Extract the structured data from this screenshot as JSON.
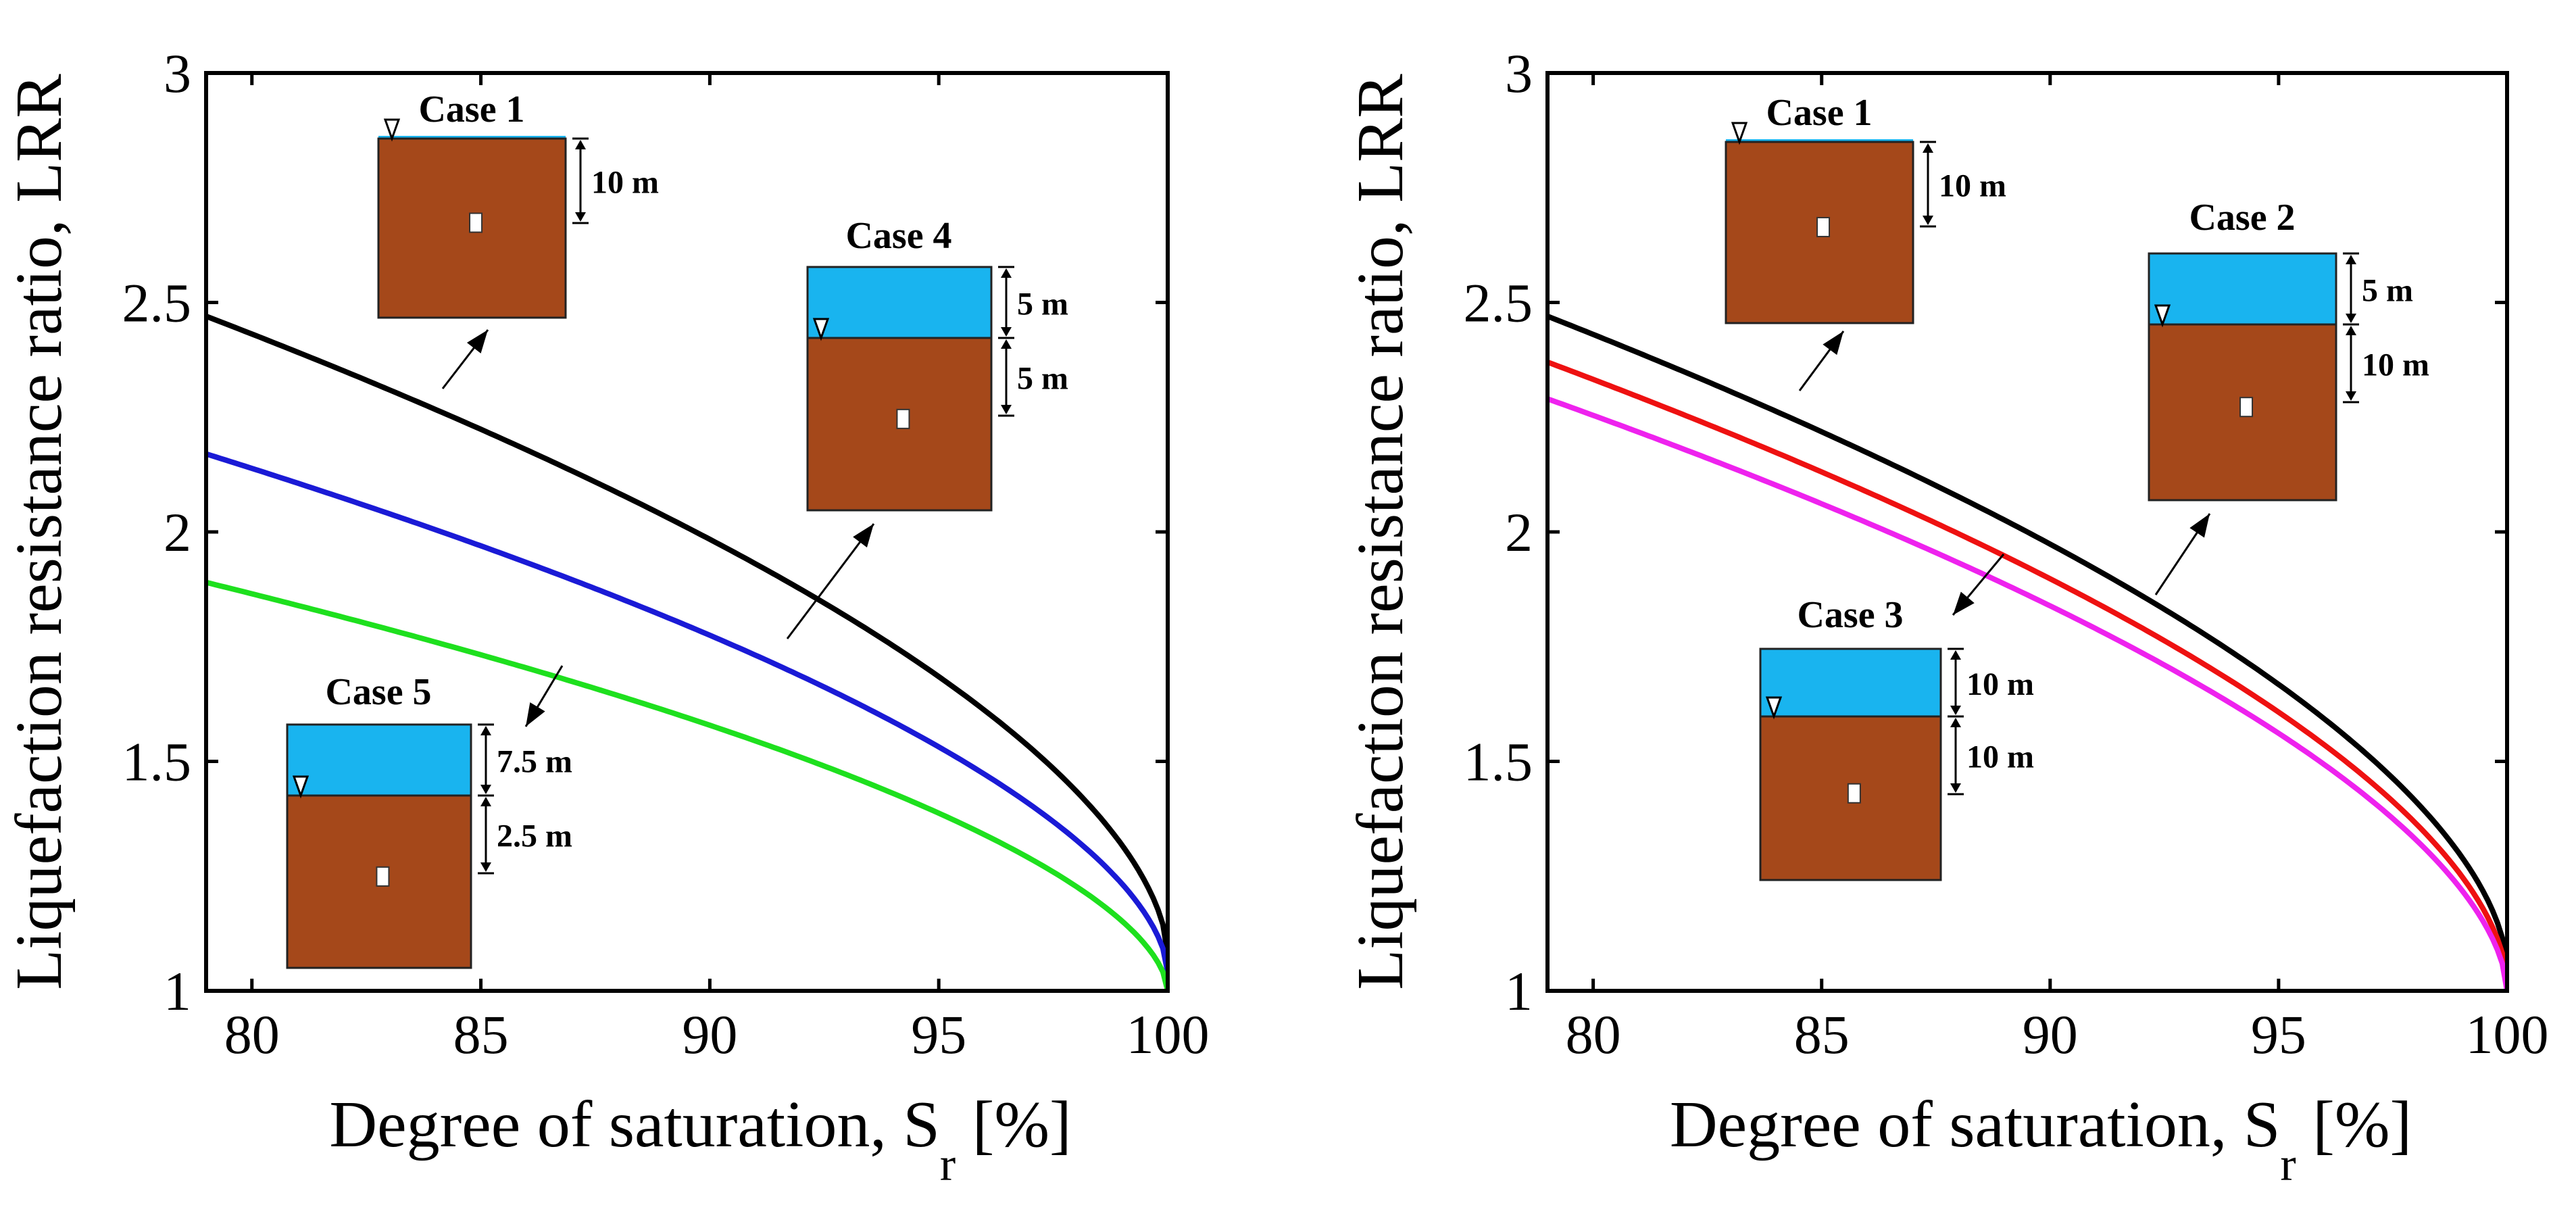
{
  "chart_data": [
    {
      "type": "line",
      "xlabel": "Degree of saturation, S",
      "xlabel_sub": "r",
      "xlabel_unit": "[%]",
      "ylabel": "Liquefaction resistance ratio, LRR",
      "xlim": [
        79,
        100
      ],
      "ylim": [
        1,
        3
      ],
      "x_ticks": [
        "80",
        "85",
        "90",
        "95",
        "100"
      ],
      "y_ticks": [
        "1",
        "1.5",
        "2",
        "2.5",
        "3"
      ],
      "series": [
        {
          "name": "Case 1",
          "color": "#000000",
          "start_value": 2.47,
          "end_value": 1.08
        },
        {
          "name": "Case 4",
          "color": "#1a1ad6",
          "start_value": 2.17,
          "end_value": 1.04
        },
        {
          "name": "Case 5",
          "color": "#1ee01e",
          "start_value": 1.89,
          "end_value": 1.0
        }
      ],
      "insets": [
        {
          "name": "Case 1",
          "title": "Case 1",
          "dims": [
            "10 m"
          ]
        },
        {
          "name": "Case 4",
          "title": "Case 4",
          "dims": [
            "5 m",
            "5 m"
          ]
        },
        {
          "name": "Case 5",
          "title": "Case 5",
          "dims": [
            "7.5 m",
            "2.5 m"
          ]
        }
      ]
    },
    {
      "type": "line",
      "xlabel": "Degree of saturation, S",
      "xlabel_sub": "r",
      "xlabel_unit": "[%]",
      "ylabel": "Liquefaction resistance ratio, LRR",
      "xlim": [
        79,
        100
      ],
      "ylim": [
        1,
        3
      ],
      "x_ticks": [
        "80",
        "85",
        "90",
        "95",
        "100"
      ],
      "y_ticks": [
        "1",
        "1.5",
        "2",
        "2.5",
        "3"
      ],
      "series": [
        {
          "name": "Case 1",
          "color": "#000000",
          "start_value": 2.47,
          "end_value": 1.05
        },
        {
          "name": "Case 2",
          "color": "#ee1111",
          "start_value": 2.37,
          "end_value": 1.02
        },
        {
          "name": "Case 3",
          "color": "#ee22ee",
          "start_value": 2.29,
          "end_value": 1.0
        }
      ],
      "insets": [
        {
          "name": "Case 1",
          "title": "Case 1",
          "dims": [
            "10 m"
          ]
        },
        {
          "name": "Case 2",
          "title": "Case 2",
          "dims": [
            "5 m",
            "10 m"
          ]
        },
        {
          "name": "Case 3",
          "title": "Case 3",
          "dims": [
            "10 m",
            "10 m"
          ]
        }
      ]
    }
  ]
}
